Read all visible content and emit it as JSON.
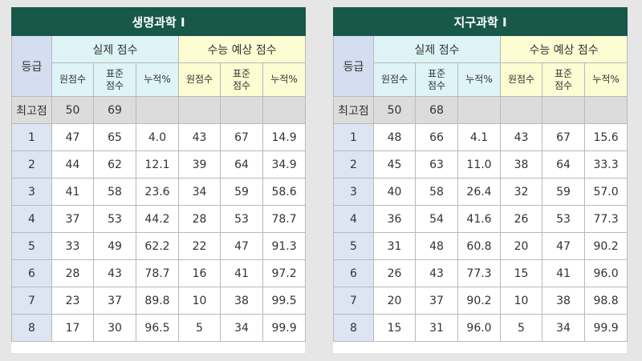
{
  "tables": [
    {
      "title": "생명과학 I",
      "headers": {
        "grade": "등급",
        "actual": "실제 점수",
        "predicted": "수능 예상 점수",
        "raw": "원점수",
        "std_line1": "표준",
        "std_line2": "점수",
        "cum": "누적%"
      },
      "max_row": {
        "label": "최고점",
        "raw": "50",
        "std": "69"
      },
      "rows": [
        {
          "grade": "1",
          "a_raw": "47",
          "a_std": "65",
          "a_cum": "4.0",
          "p_raw": "43",
          "p_std": "67",
          "p_cum": "14.9"
        },
        {
          "grade": "2",
          "a_raw": "44",
          "a_std": "62",
          "a_cum": "12.1",
          "p_raw": "39",
          "p_std": "64",
          "p_cum": "34.9"
        },
        {
          "grade": "3",
          "a_raw": "41",
          "a_std": "58",
          "a_cum": "23.6",
          "p_raw": "34",
          "p_std": "59",
          "p_cum": "58.6"
        },
        {
          "grade": "4",
          "a_raw": "37",
          "a_std": "53",
          "a_cum": "44.2",
          "p_raw": "28",
          "p_std": "53",
          "p_cum": "78.7"
        },
        {
          "grade": "5",
          "a_raw": "33",
          "a_std": "49",
          "a_cum": "62.2",
          "p_raw": "22",
          "p_std": "47",
          "p_cum": "91.3"
        },
        {
          "grade": "6",
          "a_raw": "28",
          "a_std": "43",
          "a_cum": "78.7",
          "p_raw": "16",
          "p_std": "41",
          "p_cum": "97.2"
        },
        {
          "grade": "7",
          "a_raw": "23",
          "a_std": "37",
          "a_cum": "89.8",
          "p_raw": "10",
          "p_std": "38",
          "p_cum": "99.5"
        },
        {
          "grade": "8",
          "a_raw": "17",
          "a_std": "30",
          "a_cum": "96.5",
          "p_raw": "5",
          "p_std": "34",
          "p_cum": "99.9"
        }
      ]
    },
    {
      "title": "지구과학 I",
      "headers": {
        "grade": "등급",
        "actual": "실제 점수",
        "predicted": "수능 예상 점수",
        "raw": "원점수",
        "std_line1": "표준",
        "std_line2": "점수",
        "cum": "누적%"
      },
      "max_row": {
        "label": "최고점",
        "raw": "50",
        "std": "68"
      },
      "rows": [
        {
          "grade": "1",
          "a_raw": "48",
          "a_std": "66",
          "a_cum": "4.1",
          "p_raw": "43",
          "p_std": "67",
          "p_cum": "15.6"
        },
        {
          "grade": "2",
          "a_raw": "45",
          "a_std": "63",
          "a_cum": "11.0",
          "p_raw": "38",
          "p_std": "64",
          "p_cum": "33.3"
        },
        {
          "grade": "3",
          "a_raw": "40",
          "a_std": "58",
          "a_cum": "26.4",
          "p_raw": "32",
          "p_std": "59",
          "p_cum": "57.0"
        },
        {
          "grade": "4",
          "a_raw": "36",
          "a_std": "54",
          "a_cum": "41.6",
          "p_raw": "26",
          "p_std": "53",
          "p_cum": "77.3"
        },
        {
          "grade": "5",
          "a_raw": "31",
          "a_std": "48",
          "a_cum": "60.8",
          "p_raw": "20",
          "p_std": "47",
          "p_cum": "90.2"
        },
        {
          "grade": "6",
          "a_raw": "26",
          "a_std": "43",
          "a_cum": "77.3",
          "p_raw": "15",
          "p_std": "41",
          "p_cum": "96.0"
        },
        {
          "grade": "7",
          "a_raw": "20",
          "a_std": "37",
          "a_cum": "90.2",
          "p_raw": "10",
          "p_std": "38",
          "p_cum": "98.8"
        },
        {
          "grade": "8",
          "a_raw": "15",
          "a_std": "31",
          "a_cum": "96.0",
          "p_raw": "5",
          "p_std": "34",
          "p_cum": "99.9"
        }
      ]
    }
  ]
}
